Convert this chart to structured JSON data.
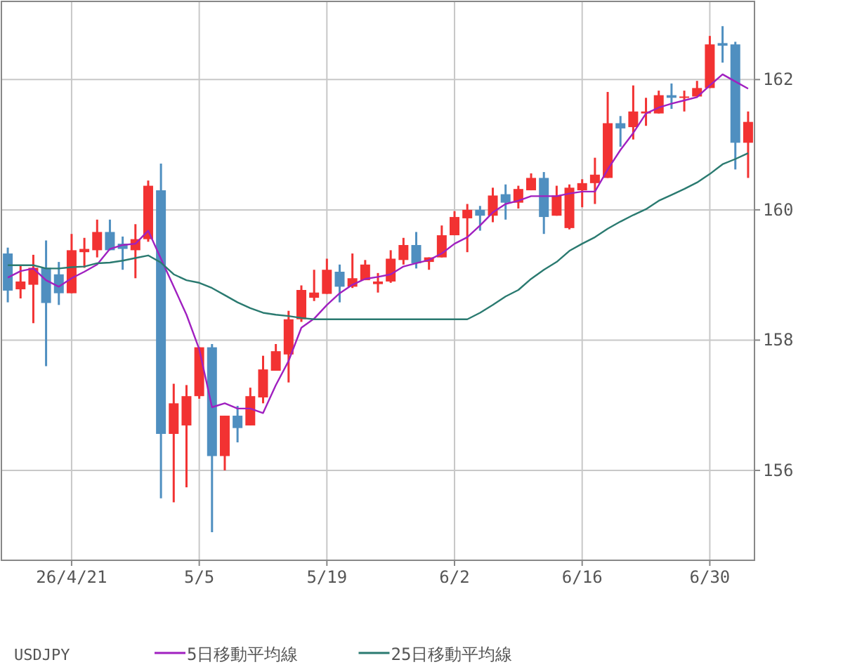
{
  "chart_data": {
    "type": "candlestick",
    "categories": [
      null,
      null,
      null,
      null,
      null,
      "26/4/21",
      null,
      null,
      null,
      null,
      null,
      null,
      null,
      null,
      null,
      "5/5",
      null,
      null,
      null,
      null,
      null,
      null,
      null,
      null,
      null,
      "5/19",
      null,
      null,
      null,
      null,
      null,
      null,
      null,
      null,
      null,
      "6/2",
      null,
      null,
      null,
      null,
      null,
      null,
      null,
      null,
      null,
      "6/16",
      null,
      null,
      null,
      null,
      null,
      null,
      null,
      null,
      null,
      "6/30",
      null,
      null,
      null
    ],
    "ohlc": [
      [
        159.33,
        159.42,
        158.58,
        158.76
      ],
      [
        158.78,
        159.15,
        158.64,
        158.9
      ],
      [
        158.85,
        159.31,
        158.26,
        159.11
      ],
      [
        159.11,
        159.53,
        157.6,
        158.57
      ],
      [
        159.01,
        159.2,
        158.54,
        158.72
      ],
      [
        158.72,
        159.63,
        158.72,
        159.38
      ],
      [
        159.35,
        159.57,
        159.11,
        159.4
      ],
      [
        159.38,
        159.85,
        159.27,
        159.66
      ],
      [
        159.66,
        159.85,
        159.38,
        159.38
      ],
      [
        159.48,
        159.59,
        159.08,
        159.4
      ],
      [
        159.38,
        159.78,
        158.95,
        159.55
      ],
      [
        159.55,
        160.45,
        159.51,
        160.37
      ],
      [
        160.3,
        160.71,
        155.57,
        156.56
      ],
      [
        156.56,
        157.33,
        155.51,
        157.03
      ],
      [
        156.69,
        157.31,
        155.74,
        157.14
      ],
      [
        157.14,
        157.89,
        157.1,
        157.89
      ],
      [
        157.89,
        157.94,
        155.05,
        156.22
      ],
      [
        156.22,
        156.84,
        156.0,
        156.84
      ],
      [
        156.84,
        156.99,
        156.43,
        156.65
      ],
      [
        156.69,
        157.27,
        156.69,
        157.14
      ],
      [
        157.12,
        157.76,
        157.03,
        157.55
      ],
      [
        157.53,
        157.94,
        157.53,
        157.83
      ],
      [
        157.78,
        158.45,
        157.35,
        158.32
      ],
      [
        158.32,
        158.84,
        158.28,
        158.77
      ],
      [
        158.65,
        159.08,
        158.6,
        158.73
      ],
      [
        158.71,
        159.25,
        158.71,
        159.08
      ],
      [
        159.05,
        159.16,
        158.58,
        158.82
      ],
      [
        158.82,
        159.33,
        158.8,
        158.95
      ],
      [
        158.92,
        159.23,
        158.92,
        159.16
      ],
      [
        158.86,
        159.03,
        158.73,
        158.9
      ],
      [
        158.9,
        159.38,
        158.88,
        159.25
      ],
      [
        159.23,
        159.57,
        159.16,
        159.46
      ],
      [
        159.46,
        159.66,
        159.1,
        159.18
      ],
      [
        159.2,
        159.27,
        159.08,
        159.27
      ],
      [
        159.27,
        159.76,
        159.27,
        159.61
      ],
      [
        159.61,
        159.98,
        159.61,
        159.89
      ],
      [
        159.87,
        160.09,
        159.35,
        160.0
      ],
      [
        160.0,
        160.06,
        159.68,
        159.91
      ],
      [
        159.91,
        160.34,
        159.81,
        160.22
      ],
      [
        160.24,
        160.39,
        159.85,
        160.11
      ],
      [
        160.11,
        160.37,
        160.02,
        160.32
      ],
      [
        160.3,
        160.56,
        160.3,
        160.49
      ],
      [
        160.49,
        160.58,
        159.63,
        159.89
      ],
      [
        159.91,
        160.37,
        159.91,
        160.22
      ],
      [
        159.72,
        160.39,
        159.7,
        160.34
      ],
      [
        160.3,
        160.47,
        160.04,
        160.41
      ],
      [
        160.41,
        160.8,
        160.09,
        160.54
      ],
      [
        160.49,
        161.81,
        160.49,
        161.33
      ],
      [
        161.33,
        161.44,
        160.97,
        161.25
      ],
      [
        161.27,
        161.91,
        161.08,
        161.51
      ],
      [
        161.48,
        161.72,
        161.29,
        161.51
      ],
      [
        161.48,
        161.83,
        161.48,
        161.76
      ],
      [
        161.76,
        161.94,
        161.55,
        161.72
      ],
      [
        161.72,
        161.83,
        161.51,
        161.74
      ],
      [
        161.74,
        161.98,
        161.74,
        161.87
      ],
      [
        161.87,
        162.67,
        161.87,
        162.54
      ],
      [
        162.56,
        162.82,
        162.26,
        162.52
      ],
      [
        162.54,
        162.58,
        160.62,
        161.03
      ],
      [
        161.03,
        161.51,
        160.49,
        161.35
      ]
    ],
    "colors": [
      "#4f8fc0",
      "#f23232",
      "#f23232",
      "#4f8fc0",
      "#4f8fc0",
      "#f23232",
      "#f23232",
      "#f23232",
      "#4f8fc0",
      "#4f8fc0",
      "#f23232",
      "#f23232",
      "#4f8fc0",
      "#f23232",
      "#f23232",
      "#f23232",
      "#4f8fc0",
      "#f23232",
      "#4f8fc0",
      "#f23232",
      "#f23232",
      "#f23232",
      "#f23232",
      "#f23232",
      "#f23232",
      "#f23232",
      "#4f8fc0",
      "#f23232",
      "#f23232",
      "#f23232",
      "#f23232",
      "#f23232",
      "#4f8fc0",
      "#f23232",
      "#f23232",
      "#f23232",
      "#f23232",
      "#4f8fc0",
      "#f23232",
      "#4f8fc0",
      "#f23232",
      "#f23232",
      "#4f8fc0",
      "#f23232",
      "#f23232",
      "#f23232",
      "#f23232",
      "#f23232",
      "#4f8fc0",
      "#f23232",
      "#f23232",
      "#f23232",
      "#4f8fc0",
      "#f23232",
      "#f23232",
      "#f23232",
      "#4f8fc0",
      "#4f8fc0",
      "#f23232"
    ],
    "series": [
      {
        "name": "5日移動平均線",
        "type": "line",
        "color": "#a020c0",
        "values": [
          158.96,
          159.06,
          159.1,
          158.92,
          158.82,
          158.95,
          159.05,
          159.16,
          159.4,
          159.46,
          159.48,
          159.68,
          159.25,
          158.82,
          158.39,
          157.86,
          156.97,
          157.03,
          156.95,
          156.95,
          156.88,
          157.31,
          157.68,
          158.19,
          158.33,
          158.54,
          158.72,
          158.85,
          158.94,
          158.97,
          159.01,
          159.13,
          159.18,
          159.23,
          159.33,
          159.48,
          159.58,
          159.76,
          159.96,
          160.09,
          160.14,
          160.21,
          160.21,
          160.21,
          160.25,
          160.28,
          160.28,
          160.62,
          160.92,
          161.18,
          161.48,
          161.57,
          161.63,
          161.68,
          161.73,
          161.91,
          162.08,
          161.97,
          161.86
        ]
      },
      {
        "name": "25日移動平均線",
        "type": "line",
        "color": "#2a7a70",
        "values": [
          159.15,
          159.15,
          159.15,
          159.1,
          159.1,
          159.12,
          159.13,
          159.18,
          159.19,
          159.22,
          159.26,
          159.3,
          159.19,
          159.01,
          158.92,
          158.88,
          158.8,
          158.69,
          158.58,
          158.49,
          158.42,
          158.39,
          158.37,
          158.34,
          158.32,
          158.32,
          158.32,
          158.32,
          158.32,
          158.32,
          158.32,
          158.32,
          158.32,
          158.32,
          158.32,
          158.32,
          158.32,
          158.42,
          158.54,
          158.67,
          158.77,
          158.94,
          159.08,
          159.2,
          159.37,
          159.48,
          159.58,
          159.71,
          159.82,
          159.92,
          160.01,
          160.14,
          160.23,
          160.32,
          160.42,
          160.55,
          160.7,
          160.78,
          160.87
        ]
      }
    ],
    "ylim": [
      154.62,
      163.2
    ],
    "yticks": [
      156,
      158,
      160,
      162
    ],
    "grid": true,
    "legend": "bottom",
    "annotations": [
      "USDJPY"
    ]
  }
}
